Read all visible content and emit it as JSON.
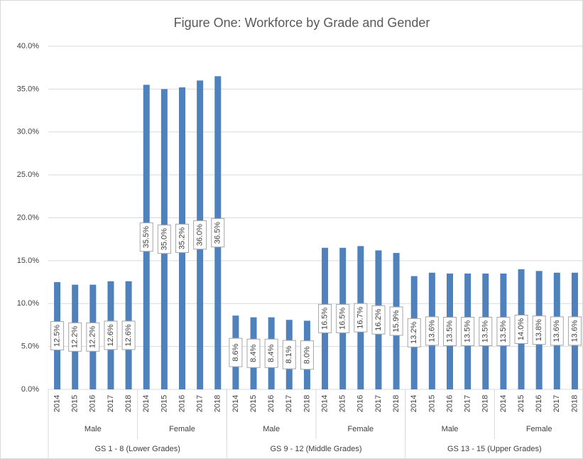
{
  "chart_data": {
    "type": "grouped-bar",
    "title": "Figure One:  Workforce by Grade and Gender",
    "color": "#4f81bd",
    "grid": true,
    "ylim": [
      0,
      40
    ],
    "yticks": [
      {
        "value": 0,
        "label": "0.0%"
      },
      {
        "value": 5,
        "label": "5.0%"
      },
      {
        "value": 10,
        "label": "10.0%"
      },
      {
        "value": 15,
        "label": "15.0%"
      },
      {
        "value": 20,
        "label": "20.0%"
      },
      {
        "value": 25,
        "label": "25.0%"
      },
      {
        "value": 30,
        "label": "30.0%"
      },
      {
        "value": 35,
        "label": "35.0%"
      },
      {
        "value": 40,
        "label": "40.0%"
      }
    ],
    "groups": [
      {
        "name": "GS 1 - 8 (Lower Grades)",
        "genders": [
          {
            "name": "Male",
            "categories": [
              "2014",
              "2015",
              "2016",
              "2017",
              "2018"
            ],
            "values": [
              12.5,
              12.2,
              12.2,
              12.6,
              12.6
            ],
            "value_labels": [
              "12.5%",
              "12.2%",
              "12.2%",
              "12.6%",
              "12.6%"
            ]
          },
          {
            "name": "Female",
            "categories": [
              "2014",
              "2015",
              "2016",
              "2017",
              "2018"
            ],
            "values": [
              35.5,
              35.0,
              35.2,
              36.0,
              36.5
            ],
            "value_labels": [
              "35.5%",
              "35.0%",
              "35.2%",
              "36.0%",
              "36.5%"
            ]
          }
        ]
      },
      {
        "name": "GS 9 - 12 (Middle Grades)",
        "genders": [
          {
            "name": "Male",
            "categories": [
              "2014",
              "2015",
              "2016",
              "2017",
              "2018"
            ],
            "values": [
              8.6,
              8.4,
              8.4,
              8.1,
              8.0
            ],
            "value_labels": [
              "8.6%",
              "8.4%",
              "8.4%",
              "8.1%",
              "8.0%"
            ]
          },
          {
            "name": "Female",
            "categories": [
              "2014",
              "2015",
              "2016",
              "2017",
              "2018"
            ],
            "values": [
              16.5,
              16.5,
              16.7,
              16.2,
              15.9
            ],
            "value_labels": [
              "16.5%",
              "16.5%",
              "16.7%",
              "16.2%",
              "15.9%"
            ]
          }
        ]
      },
      {
        "name": "GS 13 - 15 (Upper Grades)",
        "genders": [
          {
            "name": "Male",
            "categories": [
              "2014",
              "2015",
              "2016",
              "2017",
              "2018"
            ],
            "values": [
              13.2,
              13.6,
              13.5,
              13.5,
              13.5
            ],
            "value_labels": [
              "13.2%",
              "13.6%",
              "13.5%",
              "13.5%",
              "13.5%"
            ]
          },
          {
            "name": "Female",
            "categories": [
              "2014",
              "2015",
              "2016",
              "2017",
              "2018"
            ],
            "values": [
              13.5,
              14.0,
              13.8,
              13.6,
              13.6
            ],
            "value_labels": [
              "13.5%",
              "14.0%",
              "13.8%",
              "13.6%",
              "13.6%"
            ]
          }
        ]
      }
    ]
  }
}
